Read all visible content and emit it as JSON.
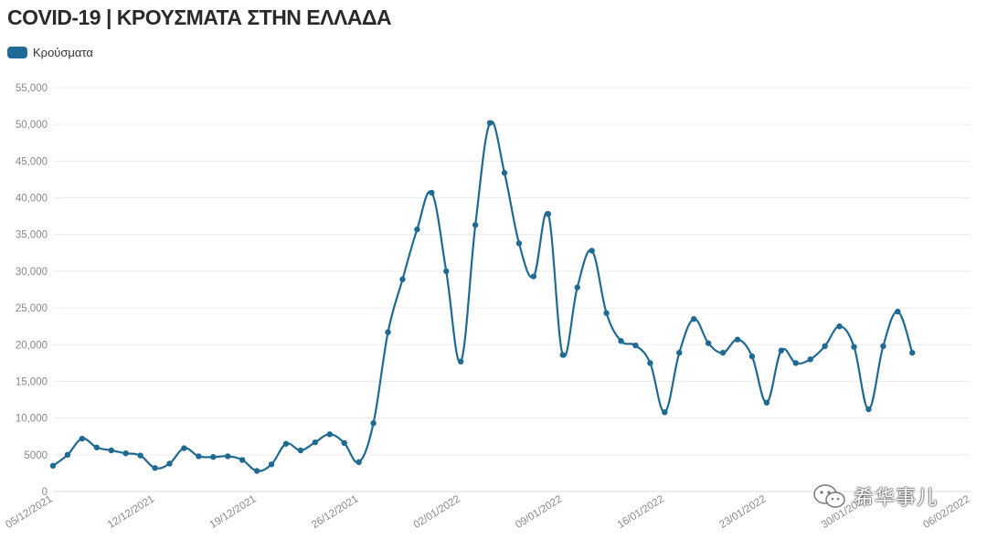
{
  "title": "COVID-19 | ΚΡΟΥΣΜΑΤΑ ΣΤΗΝ ΕΛΛΑΔΑ",
  "legend": {
    "label": "Κρούσματα",
    "color": "#1f6a92"
  },
  "watermark": {
    "text": "希华事儿",
    "icon": "wechat-icon"
  },
  "chart_data": {
    "type": "line",
    "title": "COVID-19 | ΚΡΟΥΣΜΑΤΑ ΣΤΗΝ ΕΛΛΑΔΑ",
    "xlabel": "",
    "ylabel": "",
    "ylim": [
      0,
      55000
    ],
    "y_ticks": [
      0,
      5000,
      10000,
      15000,
      20000,
      25000,
      30000,
      35000,
      40000,
      45000,
      50000,
      55000
    ],
    "y_tick_labels": [
      "0",
      "5000",
      "10,000",
      "15,000",
      "20,000",
      "25,000",
      "30,000",
      "35,000",
      "40,000",
      "45,000",
      "50,000",
      "55,000"
    ],
    "x_ticks": [
      "05/12/2021",
      "12/12/2021",
      "19/12/2021",
      "26/12/2021",
      "02/01/2022",
      "09/01/2022",
      "16/01/2022",
      "23/01/2022",
      "30/01/2022",
      "06/02/2022"
    ],
    "xlim": [
      "05/12/2021",
      "06/02/2022"
    ],
    "grid": true,
    "legend_position": "top-left",
    "series": [
      {
        "name": "Κρούσματα",
        "color": "#1f6a92",
        "x": [
          "05/12/2021",
          "06/12/2021",
          "07/12/2021",
          "08/12/2021",
          "09/12/2021",
          "10/12/2021",
          "11/12/2021",
          "12/12/2021",
          "13/12/2021",
          "14/12/2021",
          "15/12/2021",
          "16/12/2021",
          "17/12/2021",
          "18/12/2021",
          "19/12/2021",
          "20/12/2021",
          "21/12/2021",
          "22/12/2021",
          "23/12/2021",
          "24/12/2021",
          "25/12/2021",
          "26/12/2021",
          "27/12/2021",
          "28/12/2021",
          "29/12/2021",
          "30/12/2021",
          "31/12/2021",
          "01/01/2022",
          "02/01/2022",
          "03/01/2022",
          "04/01/2022",
          "05/01/2022",
          "06/01/2022",
          "07/01/2022",
          "08/01/2022",
          "09/01/2022",
          "10/01/2022",
          "11/01/2022",
          "12/01/2022",
          "13/01/2022",
          "14/01/2022",
          "15/01/2022",
          "16/01/2022",
          "17/01/2022",
          "18/01/2022",
          "19/01/2022",
          "20/01/2022",
          "21/01/2022",
          "22/01/2022",
          "23/01/2022",
          "24/01/2022",
          "25/01/2022",
          "26/01/2022",
          "27/01/2022",
          "28/01/2022",
          "29/01/2022",
          "30/01/2022",
          "31/01/2022",
          "01/02/2022",
          "02/02/2022"
        ],
        "values": [
          3500,
          5000,
          7200,
          6000,
          5600,
          5200,
          4900,
          3200,
          3800,
          5900,
          4800,
          4700,
          4800,
          4300,
          2800,
          3700,
          6500,
          5600,
          6700,
          7800,
          6600,
          4000,
          9300,
          21700,
          28900,
          35700,
          40700,
          30000,
          17700,
          36300,
          50200,
          43400,
          33800,
          29300,
          37800,
          18600,
          27800,
          32800,
          24300,
          20500,
          19900,
          17500,
          10800,
          18900,
          23500,
          20200,
          18900,
          20700,
          18400,
          12100,
          19200,
          17500,
          18000,
          19800,
          22500,
          19700,
          11200,
          19800,
          24500,
          18900
        ]
      }
    ]
  }
}
